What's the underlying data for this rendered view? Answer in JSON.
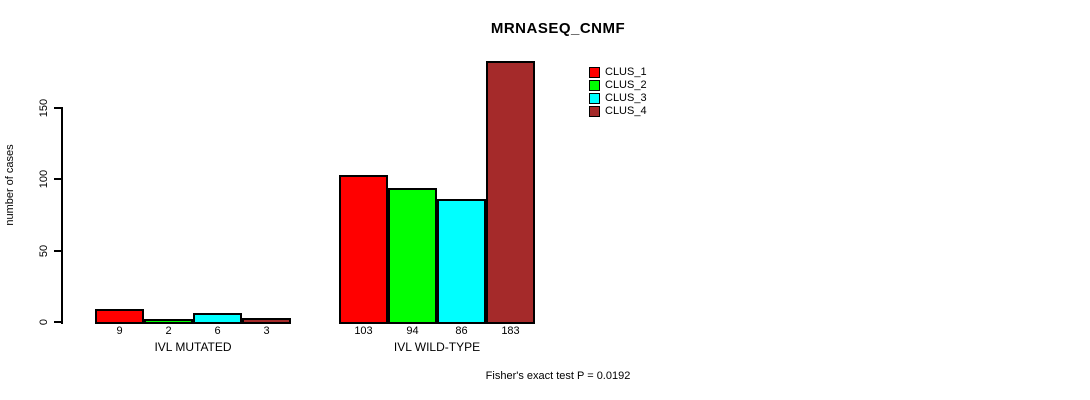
{
  "chart_data": {
    "type": "bar",
    "title": "MRNASEQ_CNMF",
    "ylabel": "number of cases",
    "xlabel": "",
    "categories": [
      "IVL MUTATED",
      "IVL WILD-TYPE"
    ],
    "series": [
      {
        "name": "CLUS_1",
        "color": "#FF0000",
        "values": [
          9,
          103
        ]
      },
      {
        "name": "CLUS_2",
        "color": "#00FF00",
        "values": [
          2,
          94
        ]
      },
      {
        "name": "CLUS_3",
        "color": "#00FFFF",
        "values": [
          6,
          86
        ]
      },
      {
        "name": "CLUS_4",
        "color": "#A52A2A",
        "values": [
          3,
          183
        ]
      }
    ],
    "yticks": [
      0,
      50,
      100,
      150
    ],
    "ylim": [
      0,
      183
    ],
    "grid": false,
    "legend_position": "top-right",
    "annotation": "Fisher's exact test P = 0.0192"
  }
}
